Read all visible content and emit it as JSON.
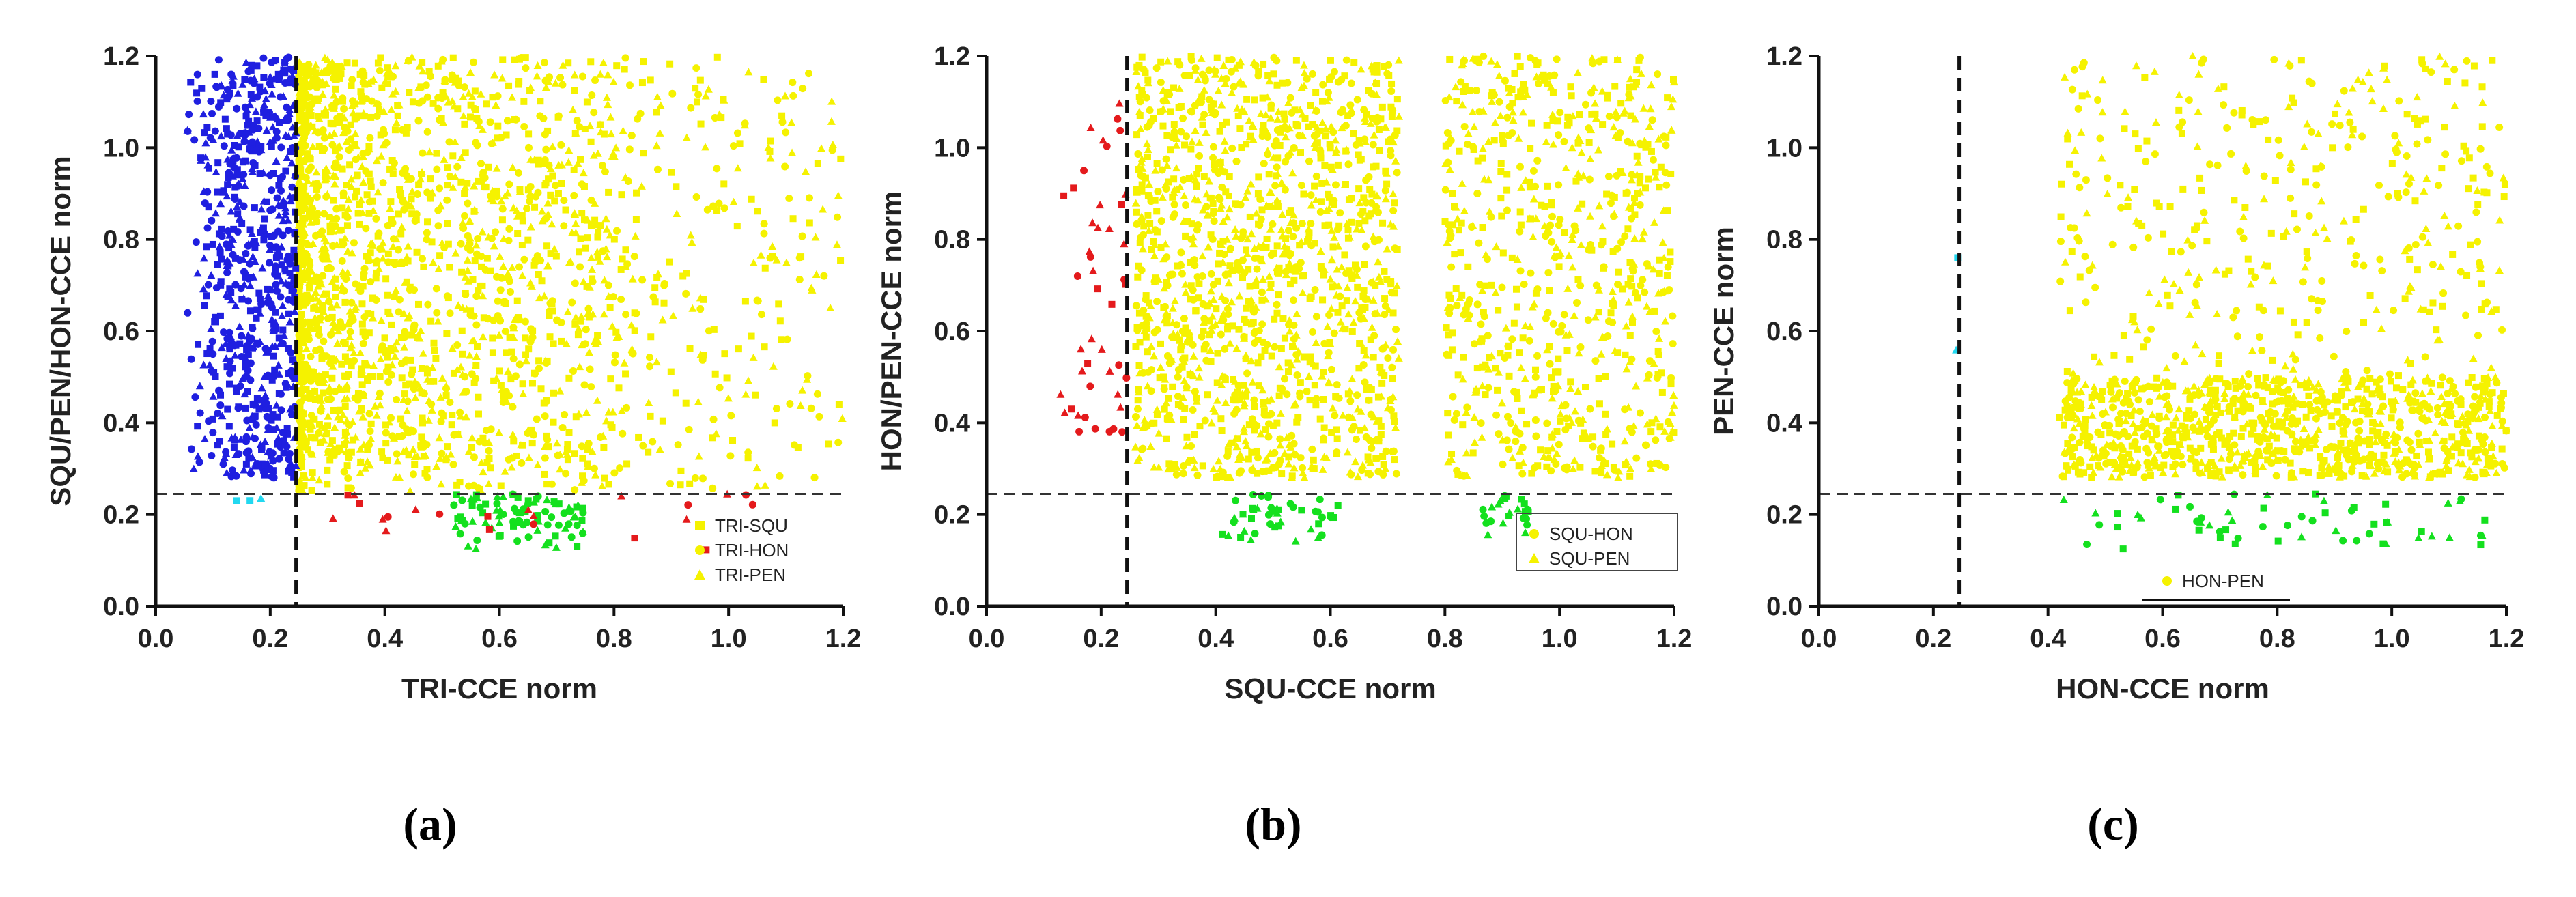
{
  "colors": {
    "blue": "#1f1fe0",
    "yellow": "#f5f200",
    "red": "#e41a1c",
    "green": "#14e01e",
    "cyan": "#22d8f0",
    "axis": "#111111"
  },
  "panel_labels": [
    "a",
    "b",
    "c"
  ],
  "chart_data": [
    {
      "type": "scatter",
      "title": "",
      "xlabel": "TRI-CCE norm",
      "ylabel": "SQU/PEN/HON-CCE norm",
      "xlim": [
        0,
        1.2
      ],
      "ylim": [
        0,
        1.2
      ],
      "xticks": [
        "0.0",
        "0.2",
        "0.4",
        "0.6",
        "0.8",
        "1.0",
        "1.2"
      ],
      "yticks": [
        "0.0",
        "0.2",
        "0.4",
        "0.6",
        "0.8",
        "1.0",
        "1.2"
      ],
      "threshold_x": 0.245,
      "threshold_y": 0.245,
      "legend_position": "bottom-right",
      "legend": [
        {
          "label": "TRI-SQU",
          "marker": "square",
          "color": "#f5f200"
        },
        {
          "label": "TRI-HON",
          "marker": "circle",
          "color": "#f5f200"
        },
        {
          "label": "TRI-PEN",
          "marker": "triangle",
          "color": "#f5f200"
        }
      ],
      "clusters": [
        {
          "color": "#f5f200",
          "x": [
            0.25,
            1.2
          ],
          "y": [
            0.25,
            1.2
          ],
          "n": 1100,
          "xdensity": 2.2,
          "ydensity": 1.0
        },
        {
          "color": "#f5f200",
          "x": [
            0.25,
            0.8
          ],
          "y": [
            0.3,
            1.2
          ],
          "n": 900,
          "xdensity": 1.6,
          "ydensity": 1.0
        },
        {
          "color": "#1f1fe0",
          "x": [
            0.05,
            0.245
          ],
          "y": [
            0.28,
            1.2
          ],
          "n": 650,
          "xdensity": 0.6,
          "ydensity": 1.0
        },
        {
          "color": "#14e01e",
          "x": [
            0.52,
            0.75
          ],
          "y": [
            0.12,
            0.245
          ],
          "n": 90,
          "xdensity": 1.0,
          "ydensity": 0.7
        },
        {
          "color": "#e41a1c",
          "x": [
            0.3,
            1.05
          ],
          "y": [
            0.12,
            0.245
          ],
          "n": 22,
          "xdensity": 1.0,
          "ydensity": 1.0
        },
        {
          "color": "#22d8f0",
          "x": [
            0.14,
            0.2
          ],
          "y": [
            0.23,
            0.25
          ],
          "n": 3,
          "xdensity": 1.0,
          "ydensity": 1.0
        }
      ]
    },
    {
      "type": "scatter",
      "title": "",
      "xlabel": "SQU-CCE norm",
      "ylabel": "HON/PEN-CCE norm",
      "xlim": [
        0,
        1.2
      ],
      "ylim": [
        0,
        1.2
      ],
      "xticks": [
        "0.0",
        "0.2",
        "0.4",
        "0.6",
        "0.8",
        "1.0",
        "1.2"
      ],
      "yticks": [
        "0.0",
        "0.2",
        "0.4",
        "0.6",
        "0.8",
        "1.0",
        "1.2"
      ],
      "threshold_x": 0.245,
      "threshold_y": 0.245,
      "legend_position": "bottom-right",
      "legend": [
        {
          "label": "SQU-HON",
          "marker": "circle",
          "color": "#f5f200"
        },
        {
          "label": "SQU-PEN",
          "marker": "triangle",
          "color": "#f5f200"
        }
      ],
      "clusters": [
        {
          "color": "#f5f200",
          "x": [
            0.26,
            0.72
          ],
          "y": [
            0.28,
            1.2
          ],
          "n": 1300,
          "xdensity": 1.0,
          "ydensity": 1.0
        },
        {
          "color": "#f5f200",
          "x": [
            0.8,
            1.2
          ],
          "y": [
            0.28,
            1.2
          ],
          "n": 700,
          "xdensity": 1.0,
          "ydensity": 1.0
        },
        {
          "color": "#e41a1c",
          "x": [
            0.12,
            0.245
          ],
          "y": [
            0.36,
            1.12
          ],
          "n": 45,
          "xdensity": 0.5,
          "ydensity": 1.0
        },
        {
          "color": "#14e01e",
          "x": [
            0.4,
            0.62
          ],
          "y": [
            0.13,
            0.245
          ],
          "n": 45,
          "xdensity": 1.0,
          "ydensity": 0.7
        },
        {
          "color": "#14e01e",
          "x": [
            0.86,
            0.96
          ],
          "y": [
            0.15,
            0.245
          ],
          "n": 25,
          "xdensity": 1.0,
          "ydensity": 0.7
        }
      ]
    },
    {
      "type": "scatter",
      "title": "",
      "xlabel": "HON-CCE norm",
      "ylabel": "PEN-CCE norm",
      "xlim": [
        0,
        1.2
      ],
      "ylim": [
        0,
        1.2
      ],
      "xticks": [
        "0.0",
        "0.2",
        "0.4",
        "0.6",
        "0.8",
        "1.0",
        "1.2"
      ],
      "yticks": [
        "0.0",
        "0.2",
        "0.4",
        "0.6",
        "0.8",
        "1.0",
        "1.2"
      ],
      "threshold_x": 0.245,
      "threshold_y": 0.245,
      "legend_position": "bottom-center",
      "legend": [
        {
          "label": "HON-PEN",
          "marker": "circle",
          "color": "#f5f200"
        }
      ],
      "clusters": [
        {
          "color": "#f5f200",
          "x": [
            0.42,
            1.2
          ],
          "y": [
            0.28,
            0.5
          ],
          "n": 900,
          "xdensity": 1.0,
          "ydensity": 1.0
        },
        {
          "color": "#f5f200",
          "x": [
            0.42,
            1.2
          ],
          "y": [
            0.5,
            1.2
          ],
          "n": 380,
          "xdensity": 1.0,
          "ydensity": 1.0
        },
        {
          "color": "#14e01e",
          "x": [
            0.42,
            1.17
          ],
          "y": [
            0.12,
            0.245
          ],
          "n": 60,
          "xdensity": 1.0,
          "ydensity": 1.0
        },
        {
          "color": "#22d8f0",
          "x": [
            0.237,
            0.243
          ],
          "y": [
            0.47,
            0.85
          ],
          "n": 2,
          "xdensity": 1.0,
          "ydensity": 1.0
        }
      ]
    }
  ]
}
